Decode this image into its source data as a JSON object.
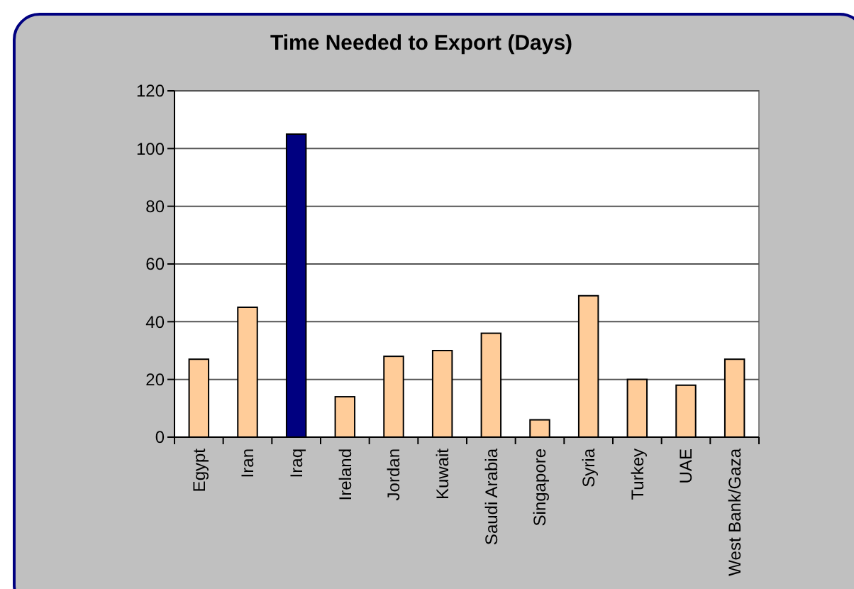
{
  "chart_data": {
    "type": "bar",
    "title": "Time Needed to Export (Days)",
    "categories": [
      "Egypt",
      "Iran",
      "Iraq",
      "Ireland",
      "Jordan",
      "Kuwait",
      "Saudi Arabia",
      "Singapore",
      "Syria",
      "Turkey",
      "UAE",
      "West Bank/Gaza"
    ],
    "values": [
      27,
      45,
      105,
      14,
      28,
      30,
      36,
      6,
      49,
      20,
      18,
      27
    ],
    "colors": [
      "#ffcc99",
      "#ffcc99",
      "#000080",
      "#ffcc99",
      "#ffcc99",
      "#ffcc99",
      "#ffcc99",
      "#ffcc99",
      "#ffcc99",
      "#ffcc99",
      "#ffcc99",
      "#ffcc99"
    ],
    "ylim": [
      0,
      120
    ],
    "yticks": [
      0,
      20,
      40,
      60,
      80,
      100,
      120
    ],
    "grid": "y"
  }
}
